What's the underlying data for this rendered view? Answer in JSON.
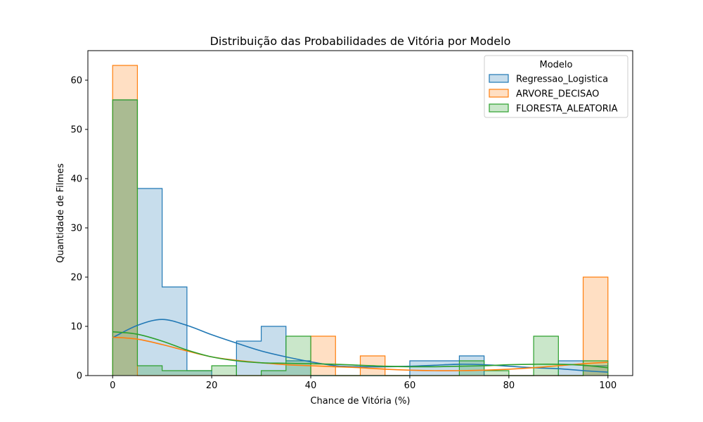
{
  "chart_data": {
    "type": "histogram",
    "title": "Distribuição das Probabilidades de Vitória por Modelo",
    "xlabel": "Chance de Vitória (%)",
    "ylabel": "Quantidade de Filmes",
    "xlim": [
      -5,
      105
    ],
    "ylim": [
      0,
      66
    ],
    "xticks": [
      0,
      20,
      40,
      60,
      80,
      100
    ],
    "yticks": [
      0,
      10,
      20,
      30,
      40,
      50,
      60
    ],
    "bin_edges": [
      0,
      5,
      10,
      15,
      20,
      25,
      30,
      35,
      40,
      45,
      50,
      55,
      60,
      65,
      70,
      75,
      80,
      85,
      90,
      95,
      100
    ],
    "grid": false,
    "legend": {
      "title": "Modelo",
      "placement": "upper right"
    },
    "series": [
      {
        "name": "Regressao_Logistica",
        "color": "#1f77b4",
        "counts": [
          56,
          38,
          18,
          1,
          0,
          7,
          10,
          3,
          0,
          0,
          0,
          0,
          3,
          3,
          4,
          0,
          0,
          0,
          3,
          2
        ],
        "kde": [
          [
            0,
            7.7
          ],
          [
            5,
            10.2
          ],
          [
            10,
            11.4
          ],
          [
            15,
            10.2
          ],
          [
            20,
            8.3
          ],
          [
            25,
            6.6
          ],
          [
            30,
            5.0
          ],
          [
            35,
            3.8
          ],
          [
            40,
            2.8
          ],
          [
            45,
            2.0
          ],
          [
            50,
            1.8
          ],
          [
            55,
            1.8
          ],
          [
            60,
            1.9
          ],
          [
            65,
            2.1
          ],
          [
            70,
            2.3
          ],
          [
            75,
            2.2
          ],
          [
            80,
            1.9
          ],
          [
            85,
            1.6
          ],
          [
            90,
            1.4
          ],
          [
            95,
            1.0
          ],
          [
            100,
            0.7
          ]
        ]
      },
      {
        "name": "ARVORE_DECISAO",
        "color": "#ff7f0e",
        "counts": [
          63,
          0,
          0,
          0,
          0,
          0,
          0,
          0,
          8,
          0,
          4,
          0,
          0,
          0,
          0,
          0,
          0,
          0,
          0,
          20
        ],
        "kde": [
          [
            0,
            7.8
          ],
          [
            5,
            7.4
          ],
          [
            10,
            6.3
          ],
          [
            15,
            5.0
          ],
          [
            20,
            3.8
          ],
          [
            25,
            3.1
          ],
          [
            30,
            2.6
          ],
          [
            35,
            2.2
          ],
          [
            40,
            2.0
          ],
          [
            45,
            1.8
          ],
          [
            50,
            1.6
          ],
          [
            55,
            1.3
          ],
          [
            60,
            1.1
          ],
          [
            65,
            1.0
          ],
          [
            70,
            1.0
          ],
          [
            75,
            1.1
          ],
          [
            80,
            1.3
          ],
          [
            85,
            1.6
          ],
          [
            90,
            2.0
          ],
          [
            95,
            2.4
          ],
          [
            100,
            2.7
          ]
        ]
      },
      {
        "name": "FLORESTA_ALEATORIA",
        "color": "#2ca02c",
        "counts": [
          56,
          2,
          1,
          1,
          2,
          0,
          1,
          8,
          0,
          0,
          0,
          0,
          0,
          0,
          3,
          1,
          0,
          8,
          0,
          3
        ],
        "kde": [
          [
            0,
            8.9
          ],
          [
            5,
            8.4
          ],
          [
            10,
            7.0
          ],
          [
            15,
            5.2
          ],
          [
            20,
            3.8
          ],
          [
            25,
            3.0
          ],
          [
            30,
            2.6
          ],
          [
            35,
            2.5
          ],
          [
            40,
            2.4
          ],
          [
            45,
            2.3
          ],
          [
            50,
            2.1
          ],
          [
            55,
            1.9
          ],
          [
            60,
            1.8
          ],
          [
            65,
            1.8
          ],
          [
            70,
            1.9
          ],
          [
            75,
            2.0
          ],
          [
            80,
            2.2
          ],
          [
            85,
            2.3
          ],
          [
            90,
            2.3
          ],
          [
            95,
            2.1
          ],
          [
            100,
            1.6
          ]
        ]
      }
    ]
  }
}
